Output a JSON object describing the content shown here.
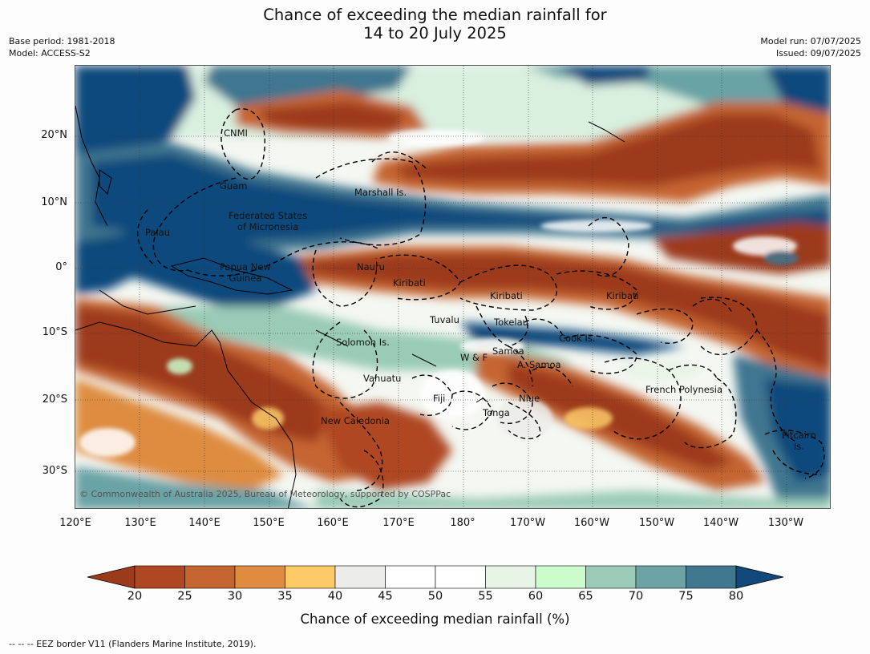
{
  "title_line1": "Chance of exceeding the median rainfall for",
  "title_line2": "14 to 20 July 2025",
  "meta_left": [
    "Base period: 1981-2018",
    "Model: ACCESS-S2"
  ],
  "meta_right": [
    "Model run: 07/07/2025",
    "Issued: 09/07/2025"
  ],
  "lat_ticks": [
    "20°N",
    "10°N",
    "0°",
    "10°S",
    "20°S",
    "30°S"
  ],
  "lon_ticks": [
    "120°E",
    "130°E",
    "140°E",
    "150°E",
    "160°E",
    "170°E",
    "180°",
    "170°W",
    "160°W",
    "150°W",
    "140°W",
    "130°W"
  ],
  "regions": {
    "cnmi": "CNMI",
    "guam": "Guam",
    "marshall": "Marshall Is.",
    "palau": "Palau",
    "fsm_1": "Federated States",
    "fsm_2": "of Micronesia",
    "png_1": "Papua New",
    "png_2": "Guinea",
    "nauru": "Nauru",
    "kiribati_w": "Kiribati",
    "kiribati_c": "Kiribati",
    "kiribati_e": "Kiribati",
    "tuvalu": "Tuvalu",
    "tokelau": "Tokelau",
    "cook": "Cook Is.",
    "solomon": "Solomon Is.",
    "wf": "W & F",
    "samoa": "Samoa",
    "asamoa": "A. Samoa",
    "vanuatu": "Vanuatu",
    "fiji": "Fiji",
    "niue": "Niue",
    "tonga": "Tonga",
    "french_poly": "French Polynesia",
    "newcal": "New Caledonia",
    "pitcairn_1": "Pitcairn",
    "pitcairn_2": "Is."
  },
  "copyright": "© Commonwealth of Australia 2025, Bureau of Meteorology, supported by COSPPac",
  "colorbar": {
    "ticks": [
      "20",
      "25",
      "30",
      "35",
      "40",
      "45",
      "50",
      "55",
      "60",
      "65",
      "70",
      "75",
      "80"
    ],
    "colors": [
      "#9c3a1c",
      "#ae4722",
      "#c46530",
      "#de8c40",
      "#fccb68",
      "#ececea",
      "#ffffff",
      "#ffffff",
      "#e8f5e6",
      "#ccfccc",
      "#9acbb6",
      "#6ba3a6",
      "#41768f",
      "#11497c"
    ],
    "label": "Chance of exceeding median rainfall (%)"
  },
  "footnote": "--  --  -- EEZ border V11 (Flanders Marine Institute, 2019)."
}
